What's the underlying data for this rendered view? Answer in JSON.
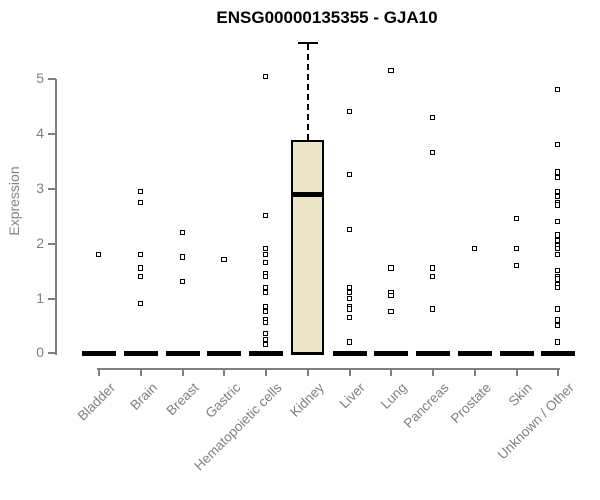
{
  "chart_data": {
    "type": "box",
    "title": "ENSG00000135355 - GJA10",
    "ylabel": "Expression",
    "ylim": [
      0,
      5.8
    ],
    "yticks": [
      0,
      1,
      2,
      3,
      4,
      5
    ],
    "grid": false,
    "legend": false,
    "x_tick_rotation_deg": 45,
    "categories": [
      "Bladder",
      "Brain",
      "Breast",
      "Gastric",
      "Hematopoietic cells",
      "Kidney",
      "Liver",
      "Lung",
      "Pancreas",
      "Prostate",
      "Skin",
      "Unknown / Other"
    ],
    "boxes": [
      {
        "category": "Bladder",
        "q1": 0,
        "median": 0,
        "q3": 0,
        "whisker_low": 0,
        "whisker_high": 0,
        "points": [
          1.8
        ]
      },
      {
        "category": "Brain",
        "q1": 0,
        "median": 0,
        "q3": 0,
        "whisker_low": 0,
        "whisker_high": 0,
        "points": [
          2.95,
          2.75,
          1.8,
          1.55,
          1.4,
          0.9
        ]
      },
      {
        "category": "Breast",
        "q1": 0,
        "median": 0,
        "q3": 0,
        "whisker_low": 0,
        "whisker_high": 0,
        "points": [
          2.2,
          1.75,
          1.3
        ]
      },
      {
        "category": "Gastric",
        "q1": 0,
        "median": 0,
        "q3": 0,
        "whisker_low": 0,
        "whisker_high": 0,
        "points": [
          1.7
        ]
      },
      {
        "category": "Hematopoietic cells",
        "q1": 0,
        "median": 0,
        "q3": 0,
        "whisker_low": 0,
        "whisker_high": 0,
        "points": [
          5.05,
          2.5,
          1.9,
          1.8,
          1.65,
          1.45,
          1.4,
          1.2,
          1.1,
          0.85,
          0.75,
          0.6,
          0.55,
          0.35,
          0.25,
          0.15
        ]
      },
      {
        "category": "Kidney",
        "q1": 0,
        "median": 2.9,
        "q3": 3.9,
        "whisker_low": 0,
        "whisker_high": 5.65,
        "points": []
      },
      {
        "category": "Liver",
        "q1": 0,
        "median": 0,
        "q3": 0,
        "whisker_low": 0,
        "whisker_high": 0,
        "points": [
          4.4,
          3.25,
          2.25,
          1.2,
          1.1,
          1.0,
          0.85,
          0.8,
          0.65,
          0.2
        ]
      },
      {
        "category": "Lung",
        "q1": 0,
        "median": 0,
        "q3": 0,
        "whisker_low": 0,
        "whisker_high": 0,
        "points": [
          5.15,
          1.55,
          1.1,
          1.05,
          0.75
        ]
      },
      {
        "category": "Pancreas",
        "q1": 0,
        "median": 0,
        "q3": 0,
        "whisker_low": 0,
        "whisker_high": 0,
        "points": [
          4.3,
          3.65,
          1.55,
          1.4,
          0.8
        ]
      },
      {
        "category": "Prostate",
        "q1": 0,
        "median": 0,
        "q3": 0,
        "whisker_low": 0,
        "whisker_high": 0,
        "points": [
          1.9
        ]
      },
      {
        "category": "Skin",
        "q1": 0,
        "median": 0,
        "q3": 0,
        "whisker_low": 0,
        "whisker_high": 0,
        "points": [
          2.45,
          1.9,
          1.6
        ]
      },
      {
        "category": "Unknown / Other",
        "q1": 0,
        "median": 0,
        "q3": 0,
        "whisker_low": 0,
        "whisker_high": 0,
        "points": [
          4.8,
          3.8,
          3.3,
          3.2,
          2.95,
          2.85,
          2.75,
          2.7,
          2.4,
          2.15,
          2.05,
          1.95,
          1.9,
          1.8,
          1.5,
          1.4,
          1.35,
          1.25,
          1.2,
          0.8,
          0.6,
          0.5,
          0.2
        ]
      }
    ],
    "colors": {
      "background": "#FFFFFF",
      "title": "#000000",
      "axis": "#808080",
      "tick_label": "#808080",
      "box_fill": "#EAE4C8",
      "box_border": "#000000",
      "marker_border": "#000000",
      "marker_fill": "#FFFFFF"
    }
  }
}
